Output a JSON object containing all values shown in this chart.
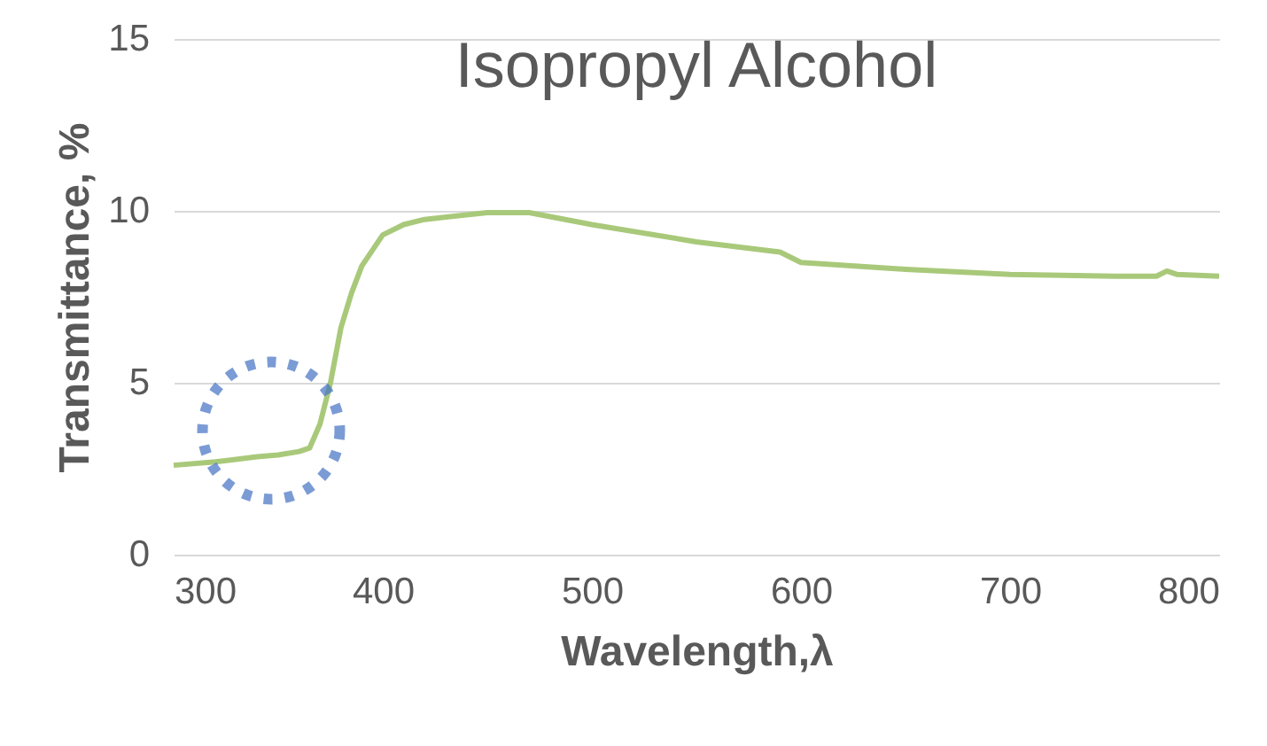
{
  "chart_data": {
    "type": "line",
    "title": "Isopropyl Alcohol",
    "xlabel": "Wavelength,λ",
    "ylabel": "Transmittance, %",
    "x": [
      300,
      320,
      340,
      350,
      360,
      365,
      370,
      375,
      380,
      385,
      390,
      400,
      410,
      420,
      450,
      470,
      500,
      550,
      590,
      600,
      650,
      700,
      750,
      770,
      775,
      780,
      800
    ],
    "series": [
      {
        "color": "#a9c97a",
        "values": [
          2.6,
          2.7,
          2.85,
          2.9,
          3.0,
          3.1,
          3.8,
          5.0,
          6.6,
          7.6,
          8.4,
          9.3,
          9.6,
          9.75,
          9.95,
          9.95,
          9.6,
          9.1,
          8.8,
          8.5,
          8.3,
          8.15,
          8.1,
          8.1,
          8.25,
          8.15,
          8.1
        ]
      }
    ],
    "xlim": [
      300,
      800
    ],
    "xticks": [
      300,
      400,
      500,
      600,
      700,
      800
    ],
    "ylim": [
      0,
      15
    ],
    "yticks": [
      0,
      5,
      10,
      15
    ],
    "grid": "y",
    "legend": false
  }
}
